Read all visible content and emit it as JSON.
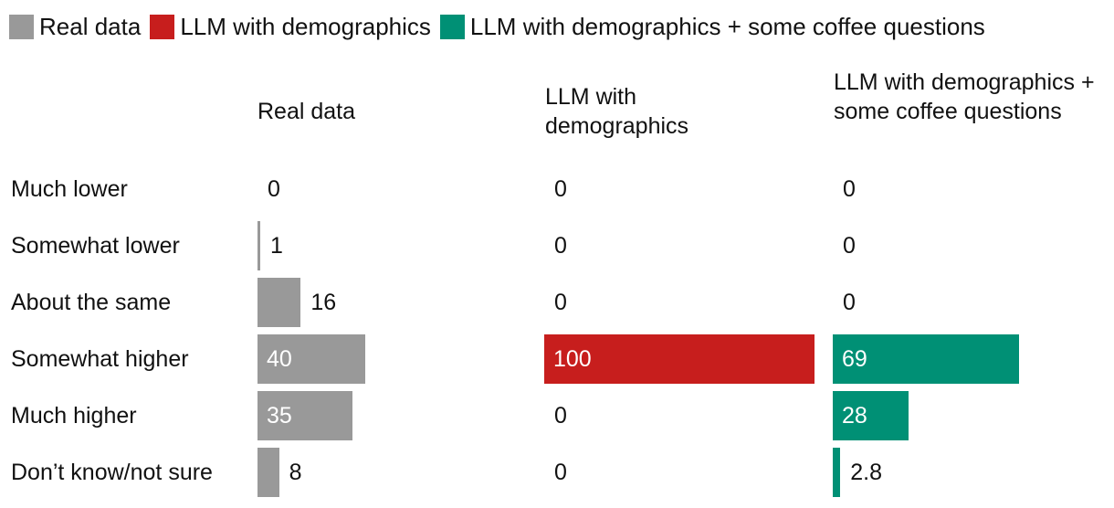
{
  "chart_data": {
    "type": "bar",
    "layout": "small-multiples-horizontal",
    "legend": [
      {
        "name": "Real data",
        "color": "#999999"
      },
      {
        "name": "LLM with demographics",
        "color": "#c71e1d"
      },
      {
        "name": "LLM with demographics + some coffee questions",
        "color": "#009075"
      }
    ],
    "categories": [
      "Much lower",
      "Somewhat lower",
      "About the same",
      "Somewhat higher",
      "Much higher",
      "Don’t know/not sure"
    ],
    "series": [
      {
        "name": "Real data",
        "header": "Real data",
        "color": "#999999",
        "values": [
          0,
          1,
          16,
          40,
          35,
          8
        ],
        "labels": [
          "0",
          "1",
          "16",
          "40",
          "35",
          "8"
        ]
      },
      {
        "name": "LLM with demographics",
        "header": "LLM with demographics",
        "color": "#c71e1d",
        "values": [
          0,
          0,
          0,
          100,
          0,
          0
        ],
        "labels": [
          "0",
          "0",
          "0",
          "100",
          "0",
          "0"
        ]
      },
      {
        "name": "LLM with demographics + some coffee questions",
        "header": "LLM with demographics + some coffee questions",
        "color": "#009075",
        "values": [
          0,
          0,
          0,
          69,
          28,
          2.8
        ],
        "labels": [
          "0",
          "0",
          "0",
          "69",
          "28",
          "2.8"
        ]
      }
    ],
    "xlim": [
      0,
      100
    ]
  }
}
